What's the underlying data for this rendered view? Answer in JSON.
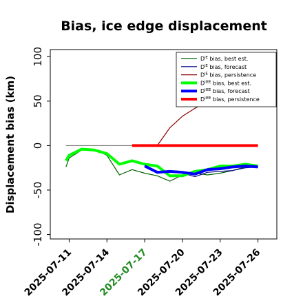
{
  "chart_data": {
    "type": "line",
    "title": "Bias, ice edge displacement",
    "ylabel": "Displacement bias (km)",
    "xlabel": "",
    "ylim": [
      -105,
      108
    ],
    "yticks": [
      -100,
      -50,
      0,
      50,
      100
    ],
    "xlim": [
      "2025-07-09T12:00",
      "2025-07-27T12:00"
    ],
    "xticks": [
      "2025-07-11",
      "2025-07-14",
      "2025-07-17",
      "2025-07-20",
      "2025-07-23",
      "2025-07-26"
    ],
    "highlight_tick": "2025-07-17",
    "highlight_color": "#228b22",
    "zero_line": {
      "x_start": "2025-07-10T18:00",
      "x_end": "2025-07-26T00:00",
      "y": 0,
      "color": "#7f7f7f"
    },
    "grid": false,
    "legend_position": "top-right",
    "series": [
      {
        "name": "DIE bias, best est.",
        "sup": "IE",
        "label": "bias, best est.",
        "color": "#006400",
        "width": 1.2,
        "x": [
          "2025-07-10T18:00",
          "2025-07-11",
          "2025-07-12",
          "2025-07-13",
          "2025-07-14",
          "2025-07-15",
          "2025-07-16",
          "2025-07-17",
          "2025-07-18",
          "2025-07-19",
          "2025-07-20",
          "2025-07-21",
          "2025-07-22",
          "2025-07-23",
          "2025-07-24",
          "2025-07-25",
          "2025-07-26"
        ],
        "y": [
          -24,
          -14,
          -5,
          -4,
          -11,
          -33,
          -27,
          -31,
          -34,
          -40,
          -33,
          -31,
          -33,
          -31,
          -28,
          -24,
          -23
        ]
      },
      {
        "name": "DIE bias, forecast",
        "sup": "IE",
        "label": "bias, forecast",
        "color": "#00008b",
        "width": 1.2,
        "x": [
          "2025-07-17",
          "2025-07-18",
          "2025-07-19",
          "2025-07-20",
          "2025-07-21",
          "2025-07-22",
          "2025-07-23",
          "2025-07-24",
          "2025-07-25",
          "2025-07-26"
        ],
        "y": [
          -22,
          -31,
          -29,
          -31,
          -35,
          -30,
          -29,
          -28,
          -25,
          -24
        ]
      },
      {
        "name": "DIE bias, persistence",
        "sup": "IE",
        "label": "bias, persistence",
        "color": "#8b0000",
        "width": 1.2,
        "x": [
          "2025-07-18",
          "2025-07-18T12:00",
          "2025-07-19",
          "2025-07-20",
          "2025-07-21",
          "2025-07-22"
        ],
        "y": [
          0,
          10,
          20,
          33,
          42,
          50
        ]
      },
      {
        "name": "DIIEE bias, best est.",
        "sup": "IIEE",
        "label": "bias, best est.",
        "color": "#00ff00",
        "width": 4,
        "x": [
          "2025-07-10T18:00",
          "2025-07-11",
          "2025-07-12",
          "2025-07-13",
          "2025-07-14",
          "2025-07-15",
          "2025-07-16",
          "2025-07-17",
          "2025-07-18",
          "2025-07-19",
          "2025-07-20",
          "2025-07-21",
          "2025-07-22",
          "2025-07-23",
          "2025-07-24",
          "2025-07-25",
          "2025-07-26"
        ],
        "y": [
          -17,
          -11,
          -4,
          -5,
          -9,
          -21,
          -17,
          -21,
          -23,
          -34,
          -34,
          -29,
          -27,
          -23,
          -23,
          -21,
          -23
        ]
      },
      {
        "name": "DIIEE bias, forecast",
        "sup": "IIEE",
        "label": "bias, forecast",
        "color": "#0000ff",
        "width": 4,
        "x": [
          "2025-07-17",
          "2025-07-18",
          "2025-07-19",
          "2025-07-20",
          "2025-07-21",
          "2025-07-22",
          "2025-07-23",
          "2025-07-24",
          "2025-07-25",
          "2025-07-26"
        ],
        "y": [
          -23,
          -30,
          -29,
          -30,
          -32,
          -27,
          -26,
          -24,
          -23,
          -24
        ]
      },
      {
        "name": "DIIEE bias, persistence",
        "sup": "IIEE",
        "label": "bias, persistence",
        "color": "#ff0000",
        "width": 4,
        "x": [
          "2025-07-16",
          "2025-07-26"
        ],
        "y": [
          0,
          0
        ]
      }
    ]
  }
}
